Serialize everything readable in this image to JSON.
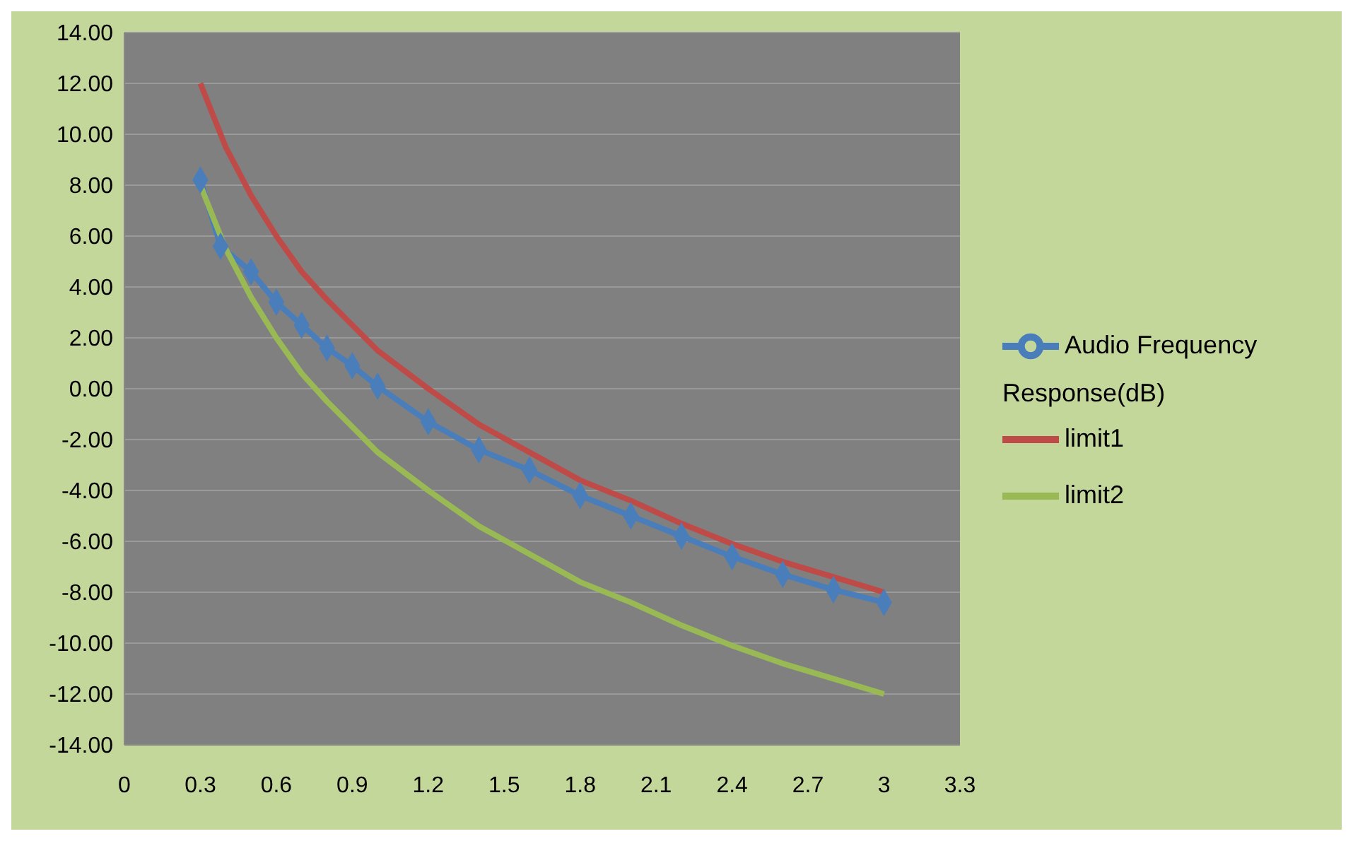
{
  "chart_data": {
    "type": "line",
    "xlim": [
      0,
      3.3
    ],
    "xticks": [
      0,
      0.3,
      0.6,
      0.9,
      1.2,
      1.5,
      1.8,
      2.1,
      2.4,
      2.7,
      3,
      3.3
    ],
    "ylim": [
      -14,
      14
    ],
    "yticks": [
      {
        "value": -14,
        "label": "-14.00"
      },
      {
        "value": -12,
        "label": "-12.00"
      },
      {
        "value": -10,
        "label": "-10.00"
      },
      {
        "value": -8,
        "label": "-8.00"
      },
      {
        "value": -6,
        "label": "-6.00"
      },
      {
        "value": -4,
        "label": "-4.00"
      },
      {
        "value": -2,
        "label": "-2.00"
      },
      {
        "value": 0,
        "label": "0.00"
      },
      {
        "value": 2,
        "label": "2.00"
      },
      {
        "value": 4,
        "label": "4.00"
      },
      {
        "value": 6,
        "label": "6.00"
      },
      {
        "value": 8,
        "label": "8.00"
      },
      {
        "value": 10,
        "label": "10.00"
      },
      {
        "value": 12,
        "label": "12.00"
      },
      {
        "value": 14,
        "label": "14.00"
      }
    ],
    "grid": "y",
    "legend": "right",
    "line_style": "solid",
    "series": [
      {
        "name": "Audio Frequency Response(dB)",
        "color": "#4a7ebb",
        "marker": "diamond",
        "x": [
          0.3,
          0.38,
          0.5,
          0.6,
          0.7,
          0.8,
          0.9,
          1.0,
          1.2,
          1.4,
          1.6,
          1.8,
          2.0,
          2.2,
          2.4,
          2.6,
          2.8,
          3.0
        ],
        "values": [
          8.2,
          5.6,
          4.6,
          3.4,
          2.5,
          1.6,
          0.9,
          0.1,
          -1.3,
          -2.4,
          -3.2,
          -4.2,
          -5.0,
          -5.8,
          -6.6,
          -7.3,
          -7.9,
          -8.4
        ]
      },
      {
        "name": "limit1",
        "color": "#be4b48",
        "marker": "none",
        "x": [
          0.3,
          0.4,
          0.5,
          0.6,
          0.7,
          0.8,
          0.9,
          1.0,
          1.2,
          1.4,
          1.6,
          1.8,
          2.0,
          2.2,
          2.4,
          2.6,
          2.8,
          3.0
        ],
        "values": [
          12.0,
          9.5,
          7.6,
          6.0,
          4.6,
          3.5,
          2.5,
          1.5,
          0.0,
          -1.4,
          -2.5,
          -3.6,
          -4.4,
          -5.3,
          -6.1,
          -6.8,
          -7.4,
          -8.0
        ]
      },
      {
        "name": "limit2",
        "color": "#98b954",
        "marker": "none",
        "x": [
          0.3,
          0.4,
          0.5,
          0.6,
          0.7,
          0.8,
          0.9,
          1.0,
          1.2,
          1.4,
          1.6,
          1.8,
          2.0,
          2.2,
          2.4,
          2.6,
          2.8,
          3.0
        ],
        "values": [
          8.0,
          5.5,
          3.6,
          2.0,
          0.6,
          -0.5,
          -1.5,
          -2.5,
          -4.0,
          -5.4,
          -6.5,
          -7.6,
          -8.4,
          -9.3,
          -10.1,
          -10.8,
          -11.4,
          -12.0
        ]
      }
    ]
  }
}
